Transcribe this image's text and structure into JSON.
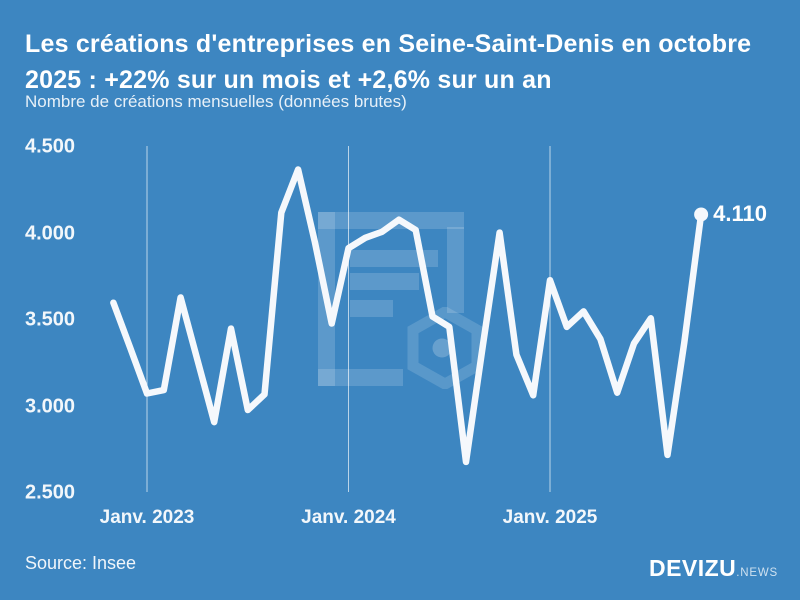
{
  "header": {
    "title_line1": "Les créations d'entreprises en Seine-Saint-Denis en octobre",
    "title_line2": "2025 : +22% sur un mois et +2,6% sur un an",
    "subtitle": "Nombre de créations mensuelles (données brutes)"
  },
  "chart_data": {
    "type": "line",
    "title": "Créations d'entreprises mensuelles en Seine-Saint-Denis",
    "x": [
      "Nov. 2022",
      "Déc. 2022",
      "Janv. 2023",
      "Févr. 2023",
      "Mars 2023",
      "Avr. 2023",
      "Mai 2023",
      "Juin 2023",
      "Juil. 2023",
      "Août 2023",
      "Sept. 2023",
      "Oct. 2023",
      "Nov. 2023",
      "Déc. 2023",
      "Janv. 2024",
      "Févr. 2024",
      "Mars 2024",
      "Avr. 2024",
      "Mai 2024",
      "Juin 2024",
      "Juil. 2024",
      "Août 2024",
      "Sept. 2024",
      "Oct. 2024",
      "Nov. 2024",
      "Déc. 2024",
      "Janv. 2025",
      "Févr. 2025",
      "Mars 2025",
      "Avr. 2025",
      "Mai 2025",
      "Juin 2025",
      "Juil. 2025",
      "Août 2025",
      "Sept. 2025",
      "Oct. 2025"
    ],
    "values": [
      3600,
      3340,
      3075,
      3095,
      3630,
      3270,
      2910,
      3450,
      2980,
      3070,
      4120,
      4370,
      3950,
      3480,
      3915,
      3975,
      4010,
      4080,
      4020,
      3520,
      3460,
      2680,
      3350,
      4005,
      3300,
      3065,
      3730,
      3460,
      3550,
      3390,
      3080,
      3365,
      3510,
      2720,
      3370,
      4110
    ],
    "y_axis": {
      "min": 2500,
      "max": 4500,
      "tick_values": [
        4500,
        4000,
        3500,
        3000,
        2500
      ],
      "tick_labels": [
        "4.500",
        "4.000",
        "3.500",
        "3.000",
        "2.500"
      ]
    },
    "x_ticks": [
      {
        "label": "Janv. 2023",
        "month_index": 2
      },
      {
        "label": "Janv. 2024",
        "month_index": 14
      },
      {
        "label": "Janv. 2025",
        "month_index": 26
      }
    ],
    "end_point_label": "4.110",
    "grid": "vertical-gridlines-only",
    "legend": "none"
  },
  "footer": {
    "source": "Source: Insee",
    "brand": "DEVIZU",
    "brand_suffix": ".NEWS"
  },
  "colors": {
    "background": "#3d86c1",
    "line": "#f5f8fc",
    "gridline": "rgba(255,255,255,0.65)",
    "text": "#ffffff",
    "watermark": "rgba(255,255,255,0.16)"
  }
}
